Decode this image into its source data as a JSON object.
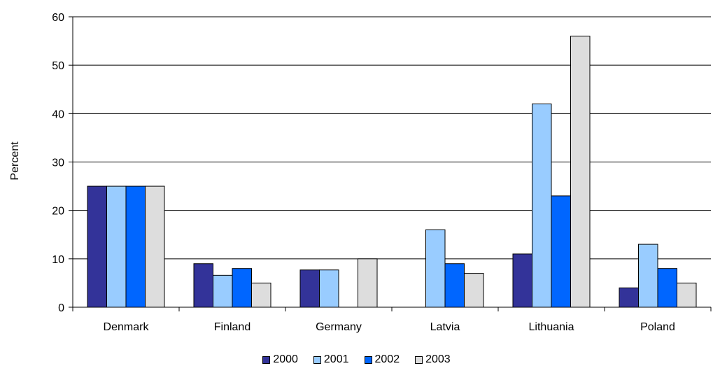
{
  "chart_data": {
    "type": "bar",
    "categories": [
      "Denmark",
      "Finland",
      "Germany",
      "Latvia",
      "Lithuania",
      "Poland"
    ],
    "series": [
      {
        "name": "2000",
        "color": "#333399",
        "values": [
          25,
          9,
          7.7,
          0,
          11,
          4
        ]
      },
      {
        "name": "2001",
        "color": "#99CCFF",
        "values": [
          25,
          6.6,
          7.7,
          16,
          42,
          13
        ]
      },
      {
        "name": "2002",
        "color": "#0066FF",
        "values": [
          25,
          8,
          null,
          9,
          23,
          8
        ]
      },
      {
        "name": "2003",
        "color": "#DDDDDD",
        "values": [
          25,
          5,
          10,
          7,
          56,
          5
        ]
      }
    ],
    "ylabel": "Percent",
    "ylim": [
      0,
      60
    ],
    "yticks": [
      0,
      10,
      20,
      30,
      40,
      50,
      60
    ],
    "grid": true,
    "legend": "bottom"
  }
}
